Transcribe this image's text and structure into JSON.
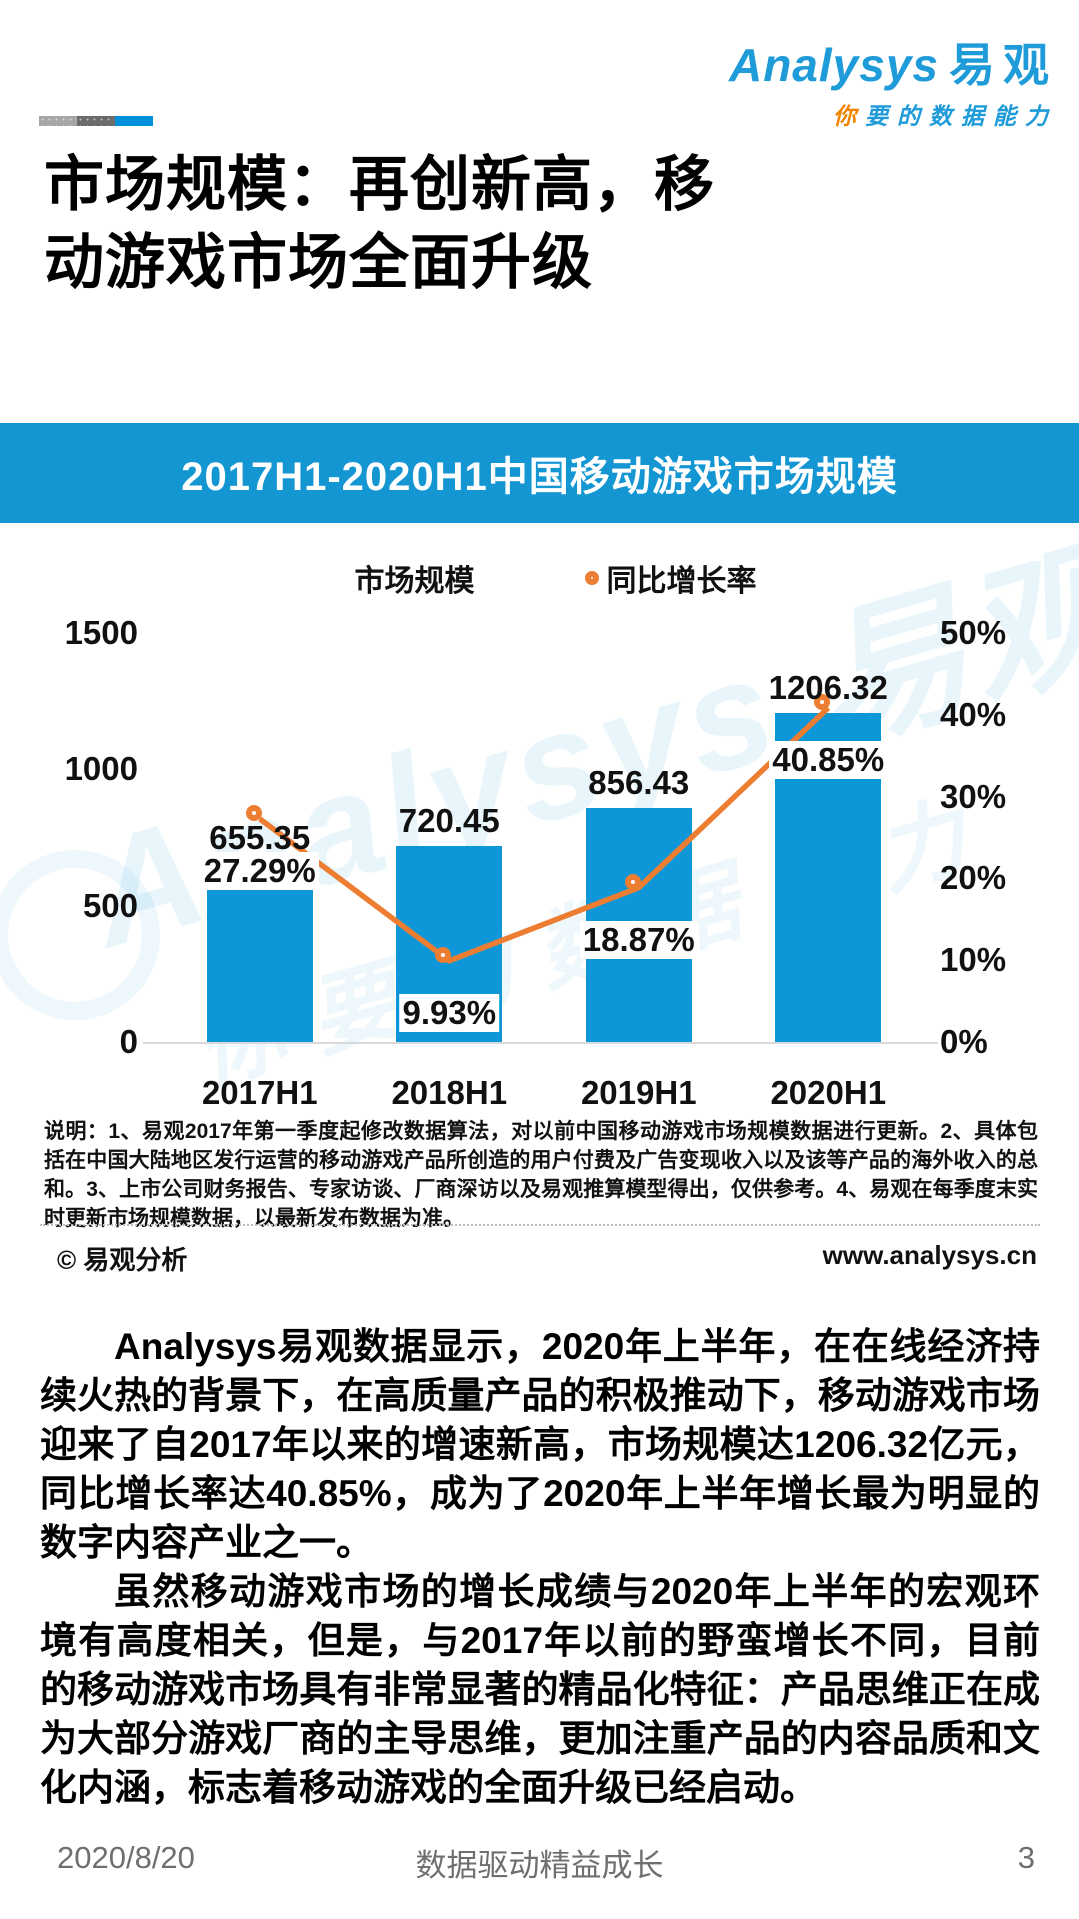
{
  "brand": {
    "logo_en": "Analysys",
    "logo_cn": "易观",
    "tagline_first": "你",
    "tagline_rest": "要的数据能力",
    "blue": "#1E9BD8",
    "orange": "#F08300"
  },
  "progress": {
    "segments": [
      {
        "color": "#A7A7A7"
      },
      {
        "color": "#6C6C6C"
      },
      {
        "color": "#0091DA"
      }
    ]
  },
  "title": {
    "line1": "市场规模：再创新高，移",
    "line2": "动游戏市场全面升级"
  },
  "banner": {
    "text": "2017H1-2020H1中国移动游戏市场规模",
    "bg": "#1496D3"
  },
  "legend": [
    {
      "label": "市场规模",
      "type": "bar",
      "color": "#0D97D8"
    },
    {
      "label": "同比增长率",
      "type": "line",
      "color": "#ED7D31"
    }
  ],
  "chart_data": {
    "type": "bar",
    "subtype": "bar+line-combo",
    "title": "2017H1-2020H1中国移动游戏市场规模",
    "categories": [
      "2017H1",
      "2018H1",
      "2019H1",
      "2020H1"
    ],
    "series": [
      {
        "name": "市场规模",
        "type": "bar",
        "axis": "left",
        "color": "#0D97D8",
        "values": [
          655.35,
          720.45,
          856.43,
          1206.32
        ]
      },
      {
        "name": "同比增长率",
        "type": "line",
        "axis": "right",
        "color": "#ED7D31",
        "values_pct": [
          27.29,
          9.93,
          18.87,
          40.85
        ]
      }
    ],
    "bar_labels": [
      "655.35",
      "720.45",
      "856.43",
      "1206.32"
    ],
    "pct_labels": [
      "27.29%",
      "9.93%",
      "18.87%",
      "40.85%"
    ],
    "left_axis": {
      "min": 0,
      "max": 1500,
      "ticks": [
        0,
        500,
        1000,
        1500
      ]
    },
    "right_axis": {
      "min": 0,
      "max": 50,
      "ticks": [
        0,
        10,
        20,
        30,
        40,
        50
      ],
      "suffix": "%"
    },
    "grid": false,
    "legend_position": "top",
    "watermark_line1": "Analysys 易观",
    "watermark_line2": "你要的数据能力"
  },
  "footnote": "说明：1、易观2017年第一季度起修改数据算法，对以前中国移动游戏市场规模数据进行更新。2、具体包括在中国大陆地区发行运营的移动游戏产品所创造的用户付费及广告变现收入以及该等产品的海外收入的总和。3、上市公司财务报告、专家访谈、厂商深访以及易观推算模型得出，仅供参考。4、易观在每季度末实时更新市场规模数据，以最新发布数据为准。",
  "source_row": {
    "copyright": "© 易观分析",
    "website": "www.analysys.cn"
  },
  "paragraphs": [
    "Analysys易观数据显示，2020年上半年，在在线经济持续火热的背景下，在高质量产品的积极推动下，移动游戏市场迎来了自2017年以来的增速新高，市场规模达1206.32亿元，同比增长率达40.85%，成为了2020年上半年增长最为明显的数字内容产业之一。",
    "虽然移动游戏市场的增长成绩与2020年上半年的宏观环境有高度相关，但是，与2017年以前的野蛮增长不同，目前的移动游戏市场具有非常显著的精品化特征：产品思维正在成为大部分游戏厂商的主导思维，更加注重产品的内容品质和文化内涵，标志着移动游戏的全面升级已经启动。"
  ],
  "footer": {
    "date": "2020/8/20",
    "slogan": "数据驱动精益成长",
    "page_number": "3"
  }
}
